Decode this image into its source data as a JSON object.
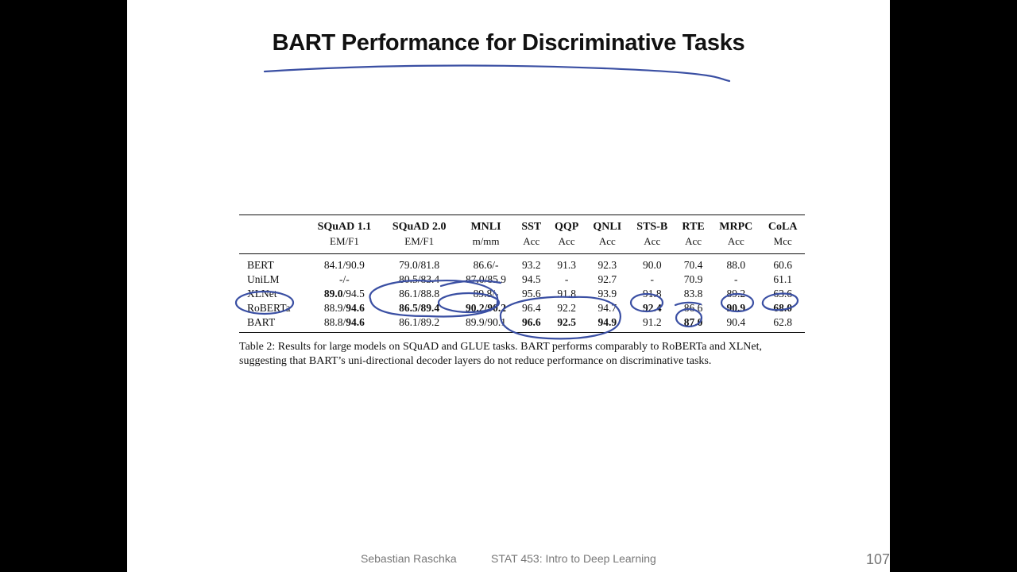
{
  "slide": {
    "title": "BART Performance for Discriminative Tasks",
    "author": "Sebastian Raschka",
    "course": "STAT 453: Intro to Deep Learning",
    "page_number": "107"
  },
  "table": {
    "headers": [
      {
        "name": "",
        "metric": ""
      },
      {
        "name": "SQuAD 1.1",
        "metric": "EM/F1"
      },
      {
        "name": "SQuAD 2.0",
        "metric": "EM/F1"
      },
      {
        "name": "MNLI",
        "metric": "m/mm"
      },
      {
        "name": "SST",
        "metric": "Acc"
      },
      {
        "name": "QQP",
        "metric": "Acc"
      },
      {
        "name": "QNLI",
        "metric": "Acc"
      },
      {
        "name": "STS-B",
        "metric": "Acc"
      },
      {
        "name": "RTE",
        "metric": "Acc"
      },
      {
        "name": "MRPC",
        "metric": "Acc"
      },
      {
        "name": "CoLA",
        "metric": "Mcc"
      }
    ],
    "rows": [
      {
        "model": "BERT",
        "cells": [
          "84.1/90.9",
          "79.0/81.8",
          "86.6/-",
          "93.2",
          "91.3",
          "92.3",
          "90.0",
          "70.4",
          "88.0",
          "60.6"
        ]
      },
      {
        "model": "UniLM",
        "cells": [
          "-/-",
          "80.5/83.4",
          "87.0/85.9",
          "94.5",
          "-",
          "92.7",
          "-",
          "70.9",
          "-",
          "61.1"
        ]
      },
      {
        "model": "XLNet",
        "cells": [
          "89.0/94.5",
          "86.1/88.8",
          "89.8/-",
          "95.6",
          "91.8",
          "93.9",
          "91.8",
          "83.8",
          "89.2",
          "63.6"
        ]
      },
      {
        "model": "RoBERTa",
        "cells": [
          "88.9/94.6",
          "86.5/89.4",
          "90.2/90.2",
          "96.4",
          "92.2",
          "94.7",
          "92.4",
          "86.6",
          "90.9",
          "68.0"
        ]
      },
      {
        "model": "BART",
        "cells": [
          "88.8/94.6",
          "86.1/89.2",
          "89.9/90.1",
          "96.6",
          "92.5",
          "94.9",
          "91.2",
          "87.0",
          "90.4",
          "62.8"
        ]
      }
    ],
    "caption": "Table 2: Results for large models on SQuAD and GLUE tasks. BART performs comparably to RoBERTa and XLNet, suggesting that BART’s uni-directional decoder layers do not reduce performance on discriminative tasks."
  },
  "annotation_color": "#3a4fa3"
}
